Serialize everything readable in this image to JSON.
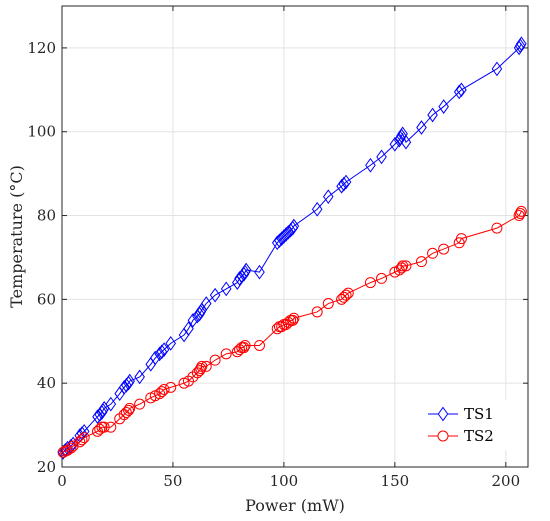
{
  "chart_data": {
    "type": "line",
    "xlabel": "Power (mW)",
    "ylabel": "Temperature (°C)",
    "xlim": [
      0,
      210
    ],
    "ylim": [
      20,
      130
    ],
    "xticks": [
      0,
      50,
      100,
      150,
      200
    ],
    "yticks": [
      20,
      40,
      60,
      80,
      100,
      120
    ],
    "grid": true,
    "legend_position": "bottom-right",
    "series": [
      {
        "name": "TS1",
        "color": "#0000ff",
        "marker": "diamond",
        "points": [
          [
            0.5,
            23.5
          ],
          [
            1.5,
            24
          ],
          [
            2.5,
            24.5
          ],
          [
            4,
            25
          ],
          [
            5,
            25.5
          ],
          [
            8,
            27.5
          ],
          [
            9,
            28
          ],
          [
            10,
            28.5
          ],
          [
            16,
            32
          ],
          [
            17,
            32.5
          ],
          [
            18,
            33
          ],
          [
            18.5,
            33.5
          ],
          [
            19,
            34
          ],
          [
            22,
            35
          ],
          [
            26,
            37.5
          ],
          [
            28,
            39
          ],
          [
            29,
            39.5
          ],
          [
            30,
            40
          ],
          [
            30.5,
            40.5
          ],
          [
            35,
            41.5
          ],
          [
            40,
            44.5
          ],
          [
            42,
            46
          ],
          [
            44,
            47
          ],
          [
            45,
            47.5
          ],
          [
            46,
            48
          ],
          [
            49,
            49.5
          ],
          [
            55,
            51.5
          ],
          [
            57,
            53
          ],
          [
            59,
            55
          ],
          [
            61,
            56
          ],
          [
            62,
            56.5
          ],
          [
            62.5,
            57
          ],
          [
            63,
            57.5
          ],
          [
            65,
            59
          ],
          [
            69,
            61
          ],
          [
            74,
            62.5
          ],
          [
            79,
            64
          ],
          [
            80,
            65
          ],
          [
            81,
            65.5
          ],
          [
            82,
            66
          ],
          [
            82.5,
            66.5
          ],
          [
            83,
            67
          ],
          [
            89,
            66.5
          ],
          [
            97,
            73.5
          ],
          [
            98,
            74
          ],
          [
            99,
            74.5
          ],
          [
            100,
            75
          ],
          [
            101,
            75.5
          ],
          [
            102,
            76
          ],
          [
            103,
            76.5
          ],
          [
            104,
            77
          ],
          [
            104.5,
            77.5
          ],
          [
            115,
            81.5
          ],
          [
            120,
            84.5
          ],
          [
            126,
            87
          ],
          [
            127,
            87.5
          ],
          [
            128,
            88
          ],
          [
            139,
            92
          ],
          [
            144,
            94
          ],
          [
            150,
            97
          ],
          [
            152,
            98
          ],
          [
            152.5,
            98.5
          ],
          [
            153,
            99
          ],
          [
            153.5,
            99.5
          ],
          [
            155,
            97.5
          ],
          [
            162,
            101
          ],
          [
            167,
            104
          ],
          [
            172,
            106
          ],
          [
            179,
            109.5
          ],
          [
            180,
            110
          ],
          [
            196,
            115
          ],
          [
            206,
            120
          ],
          [
            206.5,
            120.5
          ],
          [
            207,
            121
          ]
        ]
      },
      {
        "name": "TS2",
        "color": "#ff0000",
        "marker": "circle",
        "points": [
          [
            0.5,
            23.5
          ],
          [
            1.5,
            23.8
          ],
          [
            2.5,
            24
          ],
          [
            4,
            24.5
          ],
          [
            5,
            25
          ],
          [
            8,
            26
          ],
          [
            9,
            26.5
          ],
          [
            10,
            27
          ],
          [
            16,
            28.5
          ],
          [
            17,
            29
          ],
          [
            18,
            29.5
          ],
          [
            19,
            29.5
          ],
          [
            22,
            29.5
          ],
          [
            26,
            31.5
          ],
          [
            28,
            32.5
          ],
          [
            29,
            33
          ],
          [
            30,
            33.5
          ],
          [
            30.5,
            34
          ],
          [
            35,
            35
          ],
          [
            40,
            36.5
          ],
          [
            42,
            37
          ],
          [
            44,
            37.5
          ],
          [
            45,
            38
          ],
          [
            46,
            38.5
          ],
          [
            49,
            39
          ],
          [
            55,
            40
          ],
          [
            57,
            40.5
          ],
          [
            59,
            41.5
          ],
          [
            61,
            42.5
          ],
          [
            62,
            43
          ],
          [
            62.5,
            43.5
          ],
          [
            63,
            44
          ],
          [
            65,
            44
          ],
          [
            69,
            45.5
          ],
          [
            74,
            47
          ],
          [
            79,
            47.5
          ],
          [
            80,
            48
          ],
          [
            81,
            48.5
          ],
          [
            82,
            48.5
          ],
          [
            82.5,
            49
          ],
          [
            89,
            49
          ],
          [
            97,
            53
          ],
          [
            98,
            53.5
          ],
          [
            99,
            53.5
          ],
          [
            100,
            54
          ],
          [
            101,
            54
          ],
          [
            102,
            54.5
          ],
          [
            103,
            55
          ],
          [
            104,
            55
          ],
          [
            104.5,
            55.5
          ],
          [
            115,
            57
          ],
          [
            120,
            59
          ],
          [
            126,
            60
          ],
          [
            127,
            60.5
          ],
          [
            128,
            61
          ],
          [
            129,
            61.5
          ],
          [
            139,
            64
          ],
          [
            144,
            65
          ],
          [
            150,
            66.5
          ],
          [
            152,
            67
          ],
          [
            153,
            67.5
          ],
          [
            153.5,
            68
          ],
          [
            155,
            68
          ],
          [
            162,
            69
          ],
          [
            167,
            71
          ],
          [
            172,
            72
          ],
          [
            179,
            73.5
          ],
          [
            180,
            74.5
          ],
          [
            196,
            77
          ],
          [
            206,
            80
          ],
          [
            206.5,
            80.5
          ],
          [
            207,
            81
          ]
        ]
      }
    ]
  }
}
